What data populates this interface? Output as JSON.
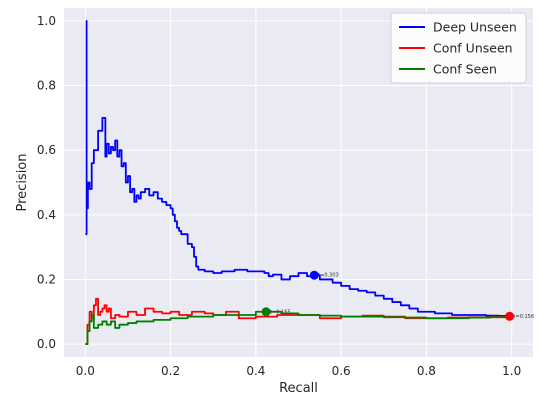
{
  "chart_data": {
    "type": "line",
    "xlabel": "Recall",
    "ylabel": "Precision",
    "xlim": [
      -0.05,
      1.05
    ],
    "ylim": [
      -0.04,
      1.04
    ],
    "x_ticks": [
      0.0,
      0.2,
      0.4,
      0.6,
      0.8,
      1.0
    ],
    "y_ticks": [
      0.0,
      0.2,
      0.4,
      0.6,
      0.8,
      1.0
    ],
    "tick_labels_x": [
      "0.0",
      "0.2",
      "0.4",
      "0.6",
      "0.8",
      "1.0"
    ],
    "tick_labels_y": [
      "0.0",
      "0.2",
      "0.4",
      "0.6",
      "0.8",
      "1.0"
    ],
    "grid": true,
    "legend_position": "top-right",
    "background": "#eaeaf2",
    "series": [
      {
        "name": "Deep Unseen",
        "color": "#0000ff",
        "x": [
          0.0,
          0.003,
          0.003,
          0.006,
          0.01,
          0.015,
          0.02,
          0.03,
          0.04,
          0.047,
          0.05,
          0.055,
          0.06,
          0.065,
          0.07,
          0.075,
          0.08,
          0.085,
          0.09,
          0.095,
          0.1,
          0.105,
          0.11,
          0.115,
          0.12,
          0.125,
          0.13,
          0.14,
          0.15,
          0.16,
          0.17,
          0.18,
          0.19,
          0.2,
          0.205,
          0.21,
          0.215,
          0.22,
          0.225,
          0.23,
          0.24,
          0.25,
          0.255,
          0.26,
          0.265,
          0.28,
          0.3,
          0.32,
          0.35,
          0.38,
          0.4,
          0.42,
          0.43,
          0.44,
          0.46,
          0.48,
          0.5,
          0.52,
          0.537,
          0.55,
          0.58,
          0.6,
          0.62,
          0.64,
          0.66,
          0.68,
          0.7,
          0.72,
          0.74,
          0.76,
          0.78,
          0.82,
          0.86,
          0.9,
          0.94,
          0.97,
          0.995
        ],
        "y": [
          0.34,
          1.0,
          0.42,
          0.5,
          0.48,
          0.56,
          0.6,
          0.66,
          0.7,
          0.58,
          0.62,
          0.59,
          0.61,
          0.6,
          0.63,
          0.58,
          0.6,
          0.55,
          0.56,
          0.5,
          0.52,
          0.47,
          0.48,
          0.44,
          0.46,
          0.45,
          0.47,
          0.48,
          0.46,
          0.47,
          0.45,
          0.44,
          0.43,
          0.42,
          0.4,
          0.38,
          0.36,
          0.35,
          0.34,
          0.34,
          0.31,
          0.3,
          0.27,
          0.24,
          0.23,
          0.225,
          0.22,
          0.225,
          0.23,
          0.225,
          0.225,
          0.22,
          0.21,
          0.215,
          0.2,
          0.21,
          0.22,
          0.21,
          0.213,
          0.2,
          0.19,
          0.18,
          0.17,
          0.165,
          0.16,
          0.15,
          0.14,
          0.13,
          0.12,
          0.11,
          0.1,
          0.095,
          0.09,
          0.09,
          0.088,
          0.087,
          0.087
        ]
      },
      {
        "name": "Conf Unseen",
        "color": "#ff0000",
        "x": [
          0.0,
          0.005,
          0.01,
          0.015,
          0.02,
          0.025,
          0.03,
          0.035,
          0.04,
          0.045,
          0.05,
          0.055,
          0.06,
          0.07,
          0.08,
          0.1,
          0.12,
          0.14,
          0.16,
          0.18,
          0.2,
          0.22,
          0.25,
          0.28,
          0.3,
          0.33,
          0.36,
          0.4,
          0.42,
          0.45,
          0.5,
          0.55,
          0.6,
          0.65,
          0.7,
          0.75,
          0.8,
          0.85,
          0.9,
          0.95,
          0.995
        ],
        "y": [
          0.0,
          0.06,
          0.1,
          0.08,
          0.12,
          0.14,
          0.09,
          0.1,
          0.11,
          0.12,
          0.1,
          0.11,
          0.08,
          0.09,
          0.085,
          0.1,
          0.09,
          0.11,
          0.1,
          0.095,
          0.1,
          0.09,
          0.1,
          0.095,
          0.09,
          0.1,
          0.08,
          0.085,
          0.085,
          0.09,
          0.09,
          0.08,
          0.085,
          0.088,
          0.085,
          0.08,
          0.08,
          0.082,
          0.083,
          0.084,
          0.086
        ]
      },
      {
        "name": "Conf Seen",
        "color": "#008000",
        "x": [
          0.0,
          0.005,
          0.01,
          0.015,
          0.02,
          0.03,
          0.04,
          0.05,
          0.06,
          0.07,
          0.08,
          0.09,
          0.1,
          0.12,
          0.14,
          0.16,
          0.18,
          0.2,
          0.22,
          0.24,
          0.26,
          0.3,
          0.35,
          0.4,
          0.424,
          0.44,
          0.46,
          0.5,
          0.55,
          0.6,
          0.65,
          0.7,
          0.75,
          0.8,
          0.85,
          0.9,
          0.95,
          0.995
        ],
        "y": [
          0.0,
          0.04,
          0.07,
          0.09,
          0.05,
          0.06,
          0.07,
          0.06,
          0.07,
          0.05,
          0.06,
          0.06,
          0.065,
          0.07,
          0.07,
          0.075,
          0.075,
          0.08,
          0.08,
          0.085,
          0.085,
          0.09,
          0.09,
          0.1,
          0.1,
          0.1,
          0.095,
          0.09,
          0.088,
          0.085,
          0.085,
          0.083,
          0.082,
          0.08,
          0.08,
          0.082,
          0.083,
          0.084
        ]
      }
    ],
    "annotations": [
      {
        "x": 0.537,
        "y": 0.213,
        "text": "t=0.303",
        "color": "#0000ff"
      },
      {
        "x": 0.424,
        "y": 0.1,
        "text": "t=0.165",
        "color": "#008000"
      },
      {
        "x": 0.995,
        "y": 0.086,
        "text": "t=0.156",
        "color": "#ff0000"
      }
    ]
  }
}
